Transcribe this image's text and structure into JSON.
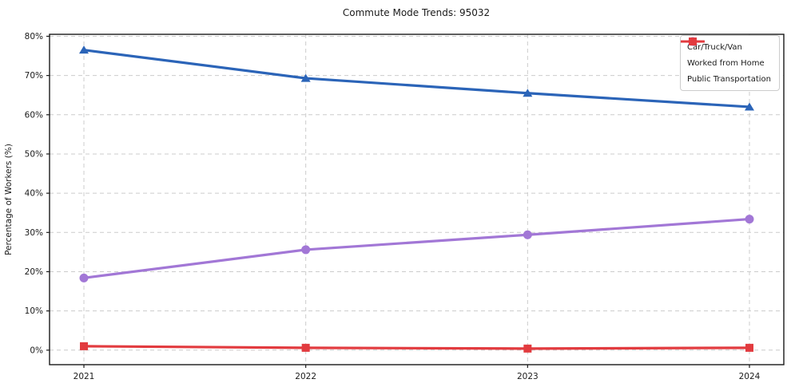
{
  "title": "Commute Mode Trends: 95032",
  "chart_data": {
    "type": "line",
    "categories": [
      "2021",
      "2022",
      "2023",
      "2024"
    ],
    "series": [
      {
        "name": "Car/Truck/Van",
        "values": [
          76.5,
          69.3,
          65.5,
          62.0
        ],
        "color": "#2b64b8",
        "marker": "triangle"
      },
      {
        "name": "Worked from Home",
        "values": [
          18.4,
          25.6,
          29.4,
          33.4
        ],
        "color": "#a277d6",
        "marker": "circle"
      },
      {
        "name": "Public Transportation",
        "values": [
          1.0,
          0.6,
          0.4,
          0.6
        ],
        "color": "#e23b3f",
        "marker": "square"
      }
    ],
    "xlabel": "",
    "ylabel": "Percentage of Workers (%)",
    "yticks": [
      0,
      10,
      20,
      30,
      40,
      50,
      60,
      70,
      80
    ],
    "ytick_labels": [
      "0%",
      "10%",
      "20%",
      "30%",
      "40%",
      "50%",
      "60%",
      "70%",
      "80%"
    ],
    "ylim": [
      -3.7,
      80.5
    ],
    "grid": true,
    "grid_style": "dashed",
    "grid_color": "#cccccc",
    "frame_color": "#1a1a1a",
    "legend_position": "upper right"
  }
}
